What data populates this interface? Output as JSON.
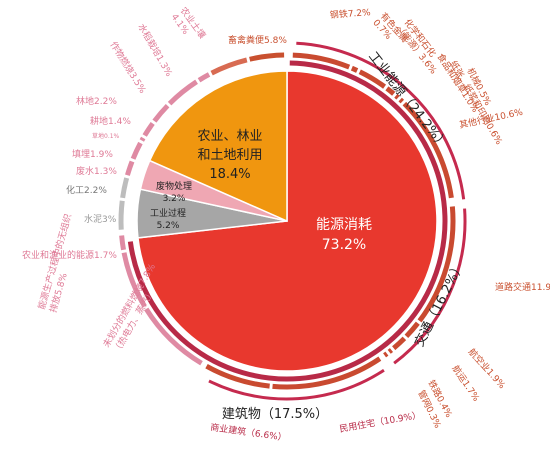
{
  "chart_data": {
    "type": "pie",
    "title": "",
    "colors": {
      "energy": "#e8382e",
      "agriculture": "#f0960f",
      "industrial": "#a6a6a6",
      "waste": "#efa7b3",
      "inner_ring": "#b82a47",
      "bracket": "#c52a4e",
      "outer_pink": "#df8aa3",
      "outer_red": "#c94a30"
    },
    "inner_slices": [
      {
        "key": "energy",
        "lines": [
          "能源消耗",
          "73.2%"
        ],
        "value": 73.2,
        "color": "#e8382e",
        "text_color": "#ffffff"
      },
      {
        "key": "industrial",
        "lines": [
          "工业过程",
          "5.2%"
        ],
        "value": 5.2,
        "color": "#a6a6a6",
        "text_color": "#222222"
      },
      {
        "key": "waste",
        "lines": [
          "废物处理",
          "3.2%"
        ],
        "value": 3.2,
        "color": "#efa7b3",
        "text_color": "#222222"
      },
      {
        "key": "agriculture",
        "lines": [
          "农业、林业",
          "和土地利用",
          "18.4%"
        ],
        "value": 18.4,
        "color": "#f0960f",
        "text_color": "#222222"
      }
    ],
    "groups": [
      {
        "label": "工业能源（24.2%）",
        "value": 24.2
      },
      {
        "label": "交通（16.2%）",
        "value": 16.2
      },
      {
        "label": "建筑物（17.5%）",
        "value": 17.5
      }
    ],
    "outer_labels": [
      {
        "lines": [
          "钢铁7.2%"
        ],
        "value": 7.2
      },
      {
        "lines": [
          "有色金属",
          "0.7%"
        ],
        "value": 0.7
      },
      {
        "lines": [
          "化学和石化",
          "（能源）3.6%"
        ],
        "value": 3.6
      },
      {
        "lines": [
          "食品和烟草1.0%"
        ],
        "value": 1.0
      },
      {
        "lines": [
          "纸张、纸浆和印刷0.6%"
        ],
        "value": 0.6
      },
      {
        "lines": [
          "机械0.5%"
        ],
        "value": 0.5
      },
      {
        "lines": [
          "其他行业10.6%"
        ],
        "value": 10.6
      },
      {
        "lines": [
          "道路交通11.9%"
        ],
        "value": 11.9
      },
      {
        "lines": [
          "航空业1.9%"
        ],
        "value": 1.9
      },
      {
        "lines": [
          "航运1.7%"
        ],
        "value": 1.7
      },
      {
        "lines": [
          "铁路0.4%"
        ],
        "value": 0.4
      },
      {
        "lines": [
          "管网0.3%"
        ],
        "value": 0.3
      },
      {
        "lines": [
          "民用住宅（10.9%）"
        ],
        "value": 10.9
      },
      {
        "lines": [
          "商业建筑（6.6%）"
        ],
        "value": 6.6
      },
      {
        "lines": [
          "未划分的燃料燃烧7.8%",
          "（热电力、蒸汽）"
        ],
        "value": 7.8
      },
      {
        "lines": [
          "能源生产过程中的无组织",
          "排放5.8%"
        ],
        "value": 5.8
      },
      {
        "lines": [
          "农业和渔业的能源1.7%"
        ],
        "value": 1.7
      },
      {
        "lines": [
          "水泥3%"
        ],
        "value": 3
      },
      {
        "lines": [
          "化工2.2%"
        ],
        "value": 2.2
      },
      {
        "lines": [
          "废水1.3%"
        ],
        "value": 1.3
      },
      {
        "lines": [
          "填埋1.9%"
        ],
        "value": 1.9
      },
      {
        "lines": [
          "草地0.1%"
        ],
        "value": 0.1
      },
      {
        "lines": [
          "耕地1.4%"
        ],
        "value": 1.4
      },
      {
        "lines": [
          "林地2.2%"
        ],
        "value": 2.2
      },
      {
        "lines": [
          "作物燃烧3.5%"
        ],
        "value": 3.5
      },
      {
        "lines": [
          "水稻栽培1.3%"
        ],
        "value": 1.3
      },
      {
        "lines": [
          "农业土壤",
          "4.1%"
        ],
        "value": 4.1
      },
      {
        "lines": [
          "畜禽粪便5.8%"
        ],
        "value": 5.8
      }
    ]
  }
}
